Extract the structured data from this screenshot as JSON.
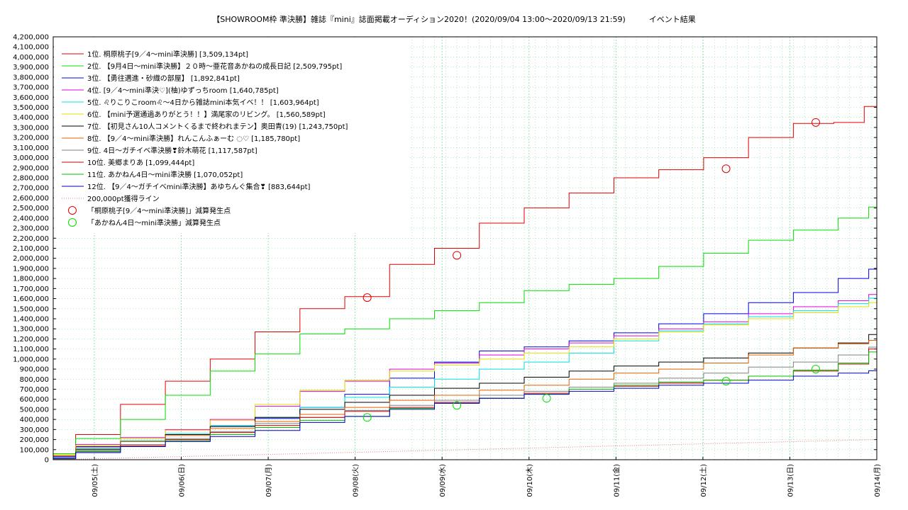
{
  "title": "【SHOWROOM枠 準決勝】雑誌『mini』誌面掲載オーディション2020！(2020/09/04 13:00〜2020/09/13 21:59)　　　イベント結果",
  "chart_data": {
    "type": "line",
    "title": "【SHOWROOM枠 準決勝】雑誌『mini』誌面掲載オーディション2020！(2020/09/04 13:00〜2020/09/13 21:59)　　　イベント結果",
    "xlabel": "",
    "ylabel": "",
    "x_range": [
      "2020/09/04 13:00",
      "2020/09/14 00:00"
    ],
    "x_ticks": [
      "09/05(土)",
      "09/06(日)",
      "09/07(月)",
      "09/08(火)",
      "09/09(水)",
      "09/10(木)",
      "09/11(金)",
      "09/12(土)",
      "09/13(日)",
      "09/14(月)"
    ],
    "ylim": [
      0,
      4200000
    ],
    "y_ticks": [
      "0",
      "100,000",
      "200,000",
      "300,000",
      "400,000",
      "500,000",
      "600,000",
      "700,000",
      "800,000",
      "900,000",
      "1,000,000",
      "1,100,000",
      "1,200,000",
      "1,300,000",
      "1,400,000",
      "1,500,000",
      "1,600,000",
      "1,700,000",
      "1,800,000",
      "1,900,000",
      "2,000,000",
      "2,100,000",
      "2,200,000",
      "2,300,000",
      "2,400,000",
      "2,500,000",
      "2,600,000",
      "2,700,000",
      "2,800,000",
      "2,900,000",
      "3,000,000",
      "3,100,000",
      "3,200,000",
      "3,300,000",
      "3,400,000",
      "3,500,000",
      "3,600,000",
      "3,700,000",
      "3,800,000",
      "3,900,000",
      "4,000,000",
      "4,100,000",
      "4,200,000"
    ],
    "grid": true,
    "legend_position": "top-left",
    "series": [
      {
        "name": "1位. 桐原桃子[9／4〜mini準決勝] [3,509,134pt]",
        "color": "#e00000",
        "step": true,
        "points": [
          [
            0,
            60000
          ],
          [
            0.5,
            250000
          ],
          [
            1,
            550000
          ],
          [
            1.5,
            780000
          ],
          [
            2,
            1000000
          ],
          [
            2.5,
            1270000
          ],
          [
            3,
            1500000
          ],
          [
            3.5,
            1620000
          ],
          [
            4,
            1940000
          ],
          [
            4.5,
            2100000
          ],
          [
            5,
            2350000
          ],
          [
            5.5,
            2500000
          ],
          [
            6,
            2650000
          ],
          [
            6.5,
            2800000
          ],
          [
            7,
            2880000
          ],
          [
            7.5,
            3000000
          ],
          [
            8,
            3200000
          ],
          [
            8.5,
            3340000
          ],
          [
            8.9,
            3350000
          ],
          [
            9.18,
            3509134
          ]
        ]
      },
      {
        "name": "2位. 【9月4日〜mini準決勝】２０時〜亜花音あかねの成長日記 [2,509,795pt]",
        "color": "#00e000",
        "step": true,
        "points": [
          [
            0,
            60000
          ],
          [
            0.5,
            210000
          ],
          [
            1,
            400000
          ],
          [
            1.5,
            640000
          ],
          [
            2,
            880000
          ],
          [
            2.5,
            1050000
          ],
          [
            3,
            1250000
          ],
          [
            3.5,
            1300000
          ],
          [
            4,
            1400000
          ],
          [
            4.5,
            1480000
          ],
          [
            5,
            1560000
          ],
          [
            5.5,
            1680000
          ],
          [
            6,
            1740000
          ],
          [
            6.5,
            1800000
          ],
          [
            7,
            1920000
          ],
          [
            7.5,
            2050000
          ],
          [
            8,
            2180000
          ],
          [
            8.5,
            2280000
          ],
          [
            9,
            2400000
          ],
          [
            9.18,
            2509795
          ]
        ]
      },
      {
        "name": "3位. 【勇往邁進・砂織の部屋】 [1,892,841pt]",
        "color": "#0000e0",
        "step": true,
        "points": [
          [
            0,
            30000
          ],
          [
            0.5,
            130000
          ],
          [
            1,
            190000
          ],
          [
            1.5,
            260000
          ],
          [
            2,
            330000
          ],
          [
            2.5,
            410000
          ],
          [
            3,
            520000
          ],
          [
            3.5,
            650000
          ],
          [
            4,
            810000
          ],
          [
            4.5,
            970000
          ],
          [
            5,
            1080000
          ],
          [
            5.5,
            1120000
          ],
          [
            6,
            1180000
          ],
          [
            6.5,
            1260000
          ],
          [
            7,
            1350000
          ],
          [
            7.5,
            1450000
          ],
          [
            8,
            1560000
          ],
          [
            8.5,
            1660000
          ],
          [
            9,
            1800000
          ],
          [
            9.18,
            1892841
          ]
        ]
      },
      {
        "name": "4位. [9／4〜mini準決♡](柚)ゆずっちroom [1,640,785pt]",
        "color": "#e000e0",
        "step": true,
        "points": [
          [
            0,
            40000
          ],
          [
            0.5,
            150000
          ],
          [
            1,
            220000
          ],
          [
            1.5,
            300000
          ],
          [
            2,
            400000
          ],
          [
            2.5,
            530000
          ],
          [
            3,
            680000
          ],
          [
            3.5,
            780000
          ],
          [
            4,
            900000
          ],
          [
            4.5,
            960000
          ],
          [
            5,
            1040000
          ],
          [
            5.5,
            1100000
          ],
          [
            6,
            1160000
          ],
          [
            6.5,
            1230000
          ],
          [
            7,
            1300000
          ],
          [
            7.5,
            1370000
          ],
          [
            8,
            1450000
          ],
          [
            8.5,
            1520000
          ],
          [
            9,
            1580000
          ],
          [
            9.18,
            1640785
          ]
        ]
      },
      {
        "name": "5位. ♌りこりこroom♌〜4日から雑誌mini本気イベ！！ [1,603,964pt]",
        "color": "#00e0e0",
        "step": true,
        "points": [
          [
            0,
            20000
          ],
          [
            0.5,
            110000
          ],
          [
            1,
            190000
          ],
          [
            1.5,
            260000
          ],
          [
            2,
            340000
          ],
          [
            2.5,
            420000
          ],
          [
            3,
            520000
          ],
          [
            3.5,
            620000
          ],
          [
            4,
            720000
          ],
          [
            4.5,
            800000
          ],
          [
            5,
            900000
          ],
          [
            5.5,
            970000
          ],
          [
            6,
            1060000
          ],
          [
            6.5,
            1180000
          ],
          [
            7,
            1280000
          ],
          [
            7.5,
            1350000
          ],
          [
            8,
            1420000
          ],
          [
            8.5,
            1480000
          ],
          [
            9,
            1550000
          ],
          [
            9.18,
            1603964
          ]
        ]
      },
      {
        "name": "6位. 【mini予選通過ありがとう！！】満尾家のリビング。 [1,560,589pt]",
        "color": "#e0e000",
        "step": true,
        "points": [
          [
            0,
            50000
          ],
          [
            0.5,
            140000
          ],
          [
            1,
            210000
          ],
          [
            1.5,
            290000
          ],
          [
            2,
            390000
          ],
          [
            2.5,
            550000
          ],
          [
            3,
            690000
          ],
          [
            3.5,
            790000
          ],
          [
            4,
            880000
          ],
          [
            4.5,
            940000
          ],
          [
            5,
            1000000
          ],
          [
            5.5,
            1060000
          ],
          [
            6,
            1120000
          ],
          [
            6.5,
            1200000
          ],
          [
            7,
            1270000
          ],
          [
            7.5,
            1340000
          ],
          [
            8,
            1400000
          ],
          [
            8.5,
            1460000
          ],
          [
            9,
            1520000
          ],
          [
            9.18,
            1560589
          ]
        ]
      },
      {
        "name": "7位. 【初見さん10人コメントくるまで終われまテン】奥田青(19) [1,243,750pt]",
        "color": "#000000",
        "step": true,
        "points": [
          [
            0,
            20000
          ],
          [
            0.5,
            100000
          ],
          [
            1,
            180000
          ],
          [
            1.5,
            250000
          ],
          [
            2,
            330000
          ],
          [
            2.5,
            420000
          ],
          [
            3,
            500000
          ],
          [
            3.5,
            570000
          ],
          [
            4,
            640000
          ],
          [
            4.5,
            710000
          ],
          [
            5,
            760000
          ],
          [
            5.5,
            820000
          ],
          [
            6,
            880000
          ],
          [
            6.5,
            930000
          ],
          [
            7,
            970000
          ],
          [
            7.5,
            1010000
          ],
          [
            8,
            1060000
          ],
          [
            8.5,
            1110000
          ],
          [
            9,
            1160000
          ],
          [
            9.18,
            1243750
          ]
        ]
      },
      {
        "name": "8位. 【9／4〜mini準決勝】れんこんふぁーむ ◌♡ [1,185,780pt]",
        "color": "#e06000",
        "step": true,
        "points": [
          [
            0,
            40000
          ],
          [
            0.5,
            120000
          ],
          [
            1,
            180000
          ],
          [
            1.5,
            240000
          ],
          [
            2,
            310000
          ],
          [
            2.5,
            380000
          ],
          [
            3,
            450000
          ],
          [
            3.5,
            520000
          ],
          [
            4,
            590000
          ],
          [
            4.5,
            640000
          ],
          [
            5,
            690000
          ],
          [
            5.5,
            740000
          ],
          [
            6,
            800000
          ],
          [
            6.5,
            860000
          ],
          [
            7,
            900000
          ],
          [
            7.5,
            960000
          ],
          [
            8,
            1040000
          ],
          [
            8.5,
            1110000
          ],
          [
            9,
            1150000
          ],
          [
            9.18,
            1185780
          ]
        ]
      },
      {
        "name": "9位. 4日〜ガチイベ準決勝❣鈴木萌花 [1,117,587pt]",
        "color": "#808080",
        "step": true,
        "points": [
          [
            0,
            20000
          ],
          [
            0.5,
            90000
          ],
          [
            1,
            150000
          ],
          [
            1.5,
            210000
          ],
          [
            2,
            280000
          ],
          [
            2.5,
            360000
          ],
          [
            3,
            420000
          ],
          [
            3.5,
            490000
          ],
          [
            4,
            540000
          ],
          [
            4.5,
            590000
          ],
          [
            5,
            640000
          ],
          [
            5.5,
            680000
          ],
          [
            6,
            720000
          ],
          [
            6.5,
            760000
          ],
          [
            7,
            810000
          ],
          [
            7.5,
            860000
          ],
          [
            8,
            920000
          ],
          [
            8.5,
            970000
          ],
          [
            9,
            1040000
          ],
          [
            9.18,
            1117587
          ]
        ]
      },
      {
        "name": "10位. 美郷まりあ [1,099,444pt]",
        "color": "#c00000",
        "step": true,
        "points": [
          [
            0,
            10000
          ],
          [
            0.5,
            80000
          ],
          [
            1,
            140000
          ],
          [
            1.5,
            200000
          ],
          [
            2,
            270000
          ],
          [
            2.5,
            340000
          ],
          [
            3,
            420000
          ],
          [
            3.5,
            480000
          ],
          [
            4,
            520000
          ],
          [
            4.5,
            570000
          ],
          [
            5,
            610000
          ],
          [
            5.5,
            660000
          ],
          [
            6,
            700000
          ],
          [
            6.5,
            730000
          ],
          [
            7,
            760000
          ],
          [
            7.5,
            790000
          ],
          [
            8,
            830000
          ],
          [
            8.5,
            880000
          ],
          [
            9,
            950000
          ],
          [
            9.18,
            1099444
          ]
        ]
      },
      {
        "name": "11位. あかねん4日〜mini準決勝 [1,070,052pt]",
        "color": "#00c000",
        "step": true,
        "points": [
          [
            0,
            10000
          ],
          [
            0.5,
            80000
          ],
          [
            1,
            130000
          ],
          [
            1.5,
            190000
          ],
          [
            2,
            250000
          ],
          [
            2.5,
            320000
          ],
          [
            3,
            390000
          ],
          [
            3.5,
            430000
          ],
          [
            4,
            510000
          ],
          [
            4.5,
            560000
          ],
          [
            5,
            610000
          ],
          [
            5.5,
            650000
          ],
          [
            6,
            700000
          ],
          [
            6.5,
            740000
          ],
          [
            7,
            770000
          ],
          [
            7.5,
            790000
          ],
          [
            8,
            830000
          ],
          [
            8.5,
            890000
          ],
          [
            9,
            960000
          ],
          [
            9.18,
            1070052
          ]
        ]
      },
      {
        "name": "12位. 【9／4〜ガチイベmini準決勝】あゆちんぐ集合❣ [883,644pt]",
        "color": "#0000c0",
        "step": true,
        "points": [
          [
            0,
            10000
          ],
          [
            0.5,
            70000
          ],
          [
            1,
            130000
          ],
          [
            1.5,
            180000
          ],
          [
            2,
            230000
          ],
          [
            2.5,
            290000
          ],
          [
            3,
            370000
          ],
          [
            3.5,
            430000
          ],
          [
            4,
            500000
          ],
          [
            4.5,
            560000
          ],
          [
            5,
            610000
          ],
          [
            5.5,
            650000
          ],
          [
            6,
            680000
          ],
          [
            6.5,
            710000
          ],
          [
            7,
            740000
          ],
          [
            7.5,
            760000
          ],
          [
            8,
            790000
          ],
          [
            8.5,
            830000
          ],
          [
            9,
            860000
          ],
          [
            9.18,
            883644
          ]
        ]
      },
      {
        "name": "200,000pt獲得ライン",
        "color": "#e08080",
        "dotted": true,
        "points": [
          [
            0,
            0
          ],
          [
            9.18,
            200000
          ]
        ]
      }
    ],
    "markers": [
      {
        "name": "「桐原桃子[9／4〜mini準決勝]」減算発生点",
        "color": "#e00000",
        "points": [
          [
            3.5,
            1610000
          ],
          [
            4.5,
            2030000
          ],
          [
            7.5,
            2890000
          ],
          [
            8.5,
            3350000
          ]
        ]
      },
      {
        "name": "「あかねん4日〜mini準決勝」減算発生点",
        "color": "#00e000",
        "points": [
          [
            3.5,
            420000
          ],
          [
            4.5,
            540000
          ],
          [
            5.5,
            610000
          ],
          [
            7.5,
            780000
          ],
          [
            8.5,
            900000
          ]
        ]
      }
    ]
  }
}
